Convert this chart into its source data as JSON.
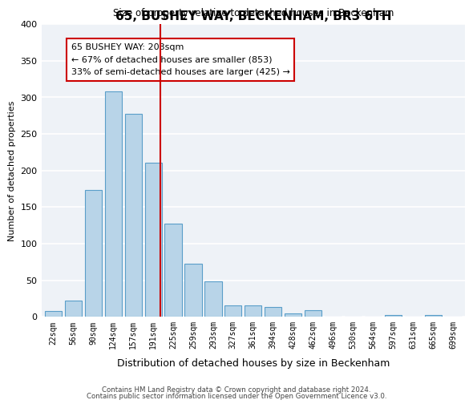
{
  "title": "65, BUSHEY WAY, BECKENHAM, BR3 6TH",
  "subtitle": "Size of property relative to detached houses in Beckenham",
  "xlabel": "Distribution of detached houses by size in Beckenham",
  "ylabel": "Number of detached properties",
  "bin_labels": [
    "22sqm",
    "56sqm",
    "90sqm",
    "124sqm",
    "157sqm",
    "191sqm",
    "225sqm",
    "259sqm",
    "293sqm",
    "327sqm",
    "361sqm",
    "394sqm",
    "428sqm",
    "462sqm",
    "496sqm",
    "530sqm",
    "564sqm",
    "597sqm",
    "631sqm",
    "665sqm",
    "699sqm"
  ],
  "bar_values": [
    8,
    22,
    173,
    308,
    277,
    211,
    127,
    73,
    48,
    16,
    16,
    14,
    5,
    9,
    0,
    0,
    0,
    2,
    0,
    3,
    0
  ],
  "bar_color": "#b8d4e8",
  "bar_edge_color": "#5a9ec9",
  "marker_bin_index": 5,
  "marker_line_color": "#cc0000",
  "annotation_title": "65 BUSHEY WAY: 203sqm",
  "annotation_line1": "← 67% of detached houses are smaller (853)",
  "annotation_line2": "33% of semi-detached houses are larger (425) →",
  "annotation_box_color": "#ffffff",
  "annotation_box_edge": "#cc0000",
  "ylim": [
    0,
    400
  ],
  "yticks": [
    0,
    50,
    100,
    150,
    200,
    250,
    300,
    350,
    400
  ],
  "footnote1": "Contains HM Land Registry data © Crown copyright and database right 2024.",
  "footnote2": "Contains public sector information licensed under the Open Government Licence v3.0."
}
